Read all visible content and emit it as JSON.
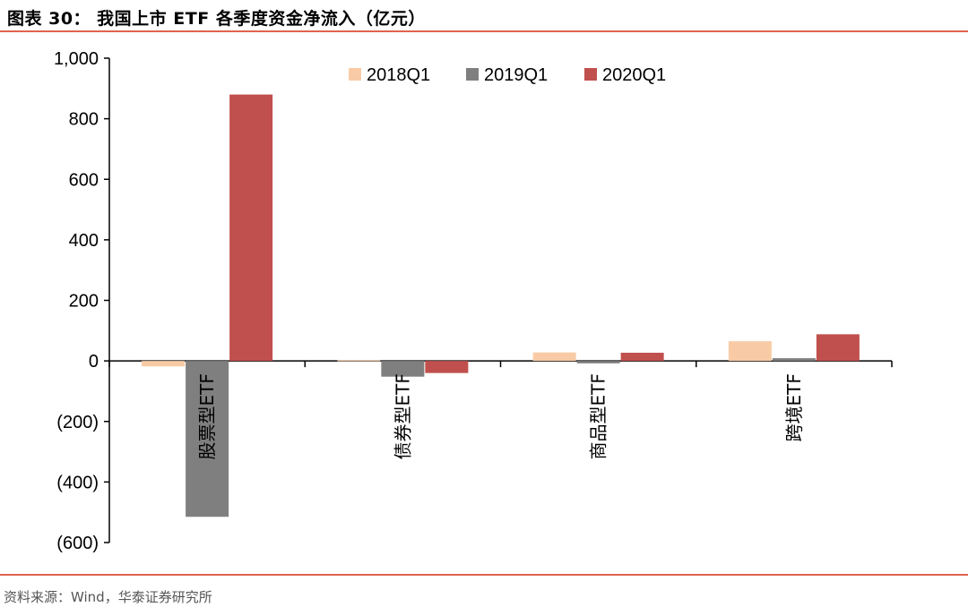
{
  "figure": {
    "title": "图表 30：  我国上市 ETF 各季度资金净流入（亿元）",
    "source": "资料来源：Wind，华泰证券研究所"
  },
  "chart_data": {
    "type": "bar",
    "categories": [
      "股票型ETF",
      "债券型ETF",
      "商品型ETF",
      "跨境ETF"
    ],
    "series": [
      {
        "name": "2018Q1",
        "color": "#f8cba6",
        "values": [
          -18,
          2,
          28,
          65
        ]
      },
      {
        "name": "2019Q1",
        "color": "#7f7f7f",
        "values": [
          -515,
          -52,
          -8,
          9
        ]
      },
      {
        "name": "2020Q1",
        "color": "#c0504d",
        "values": [
          880,
          -40,
          27,
          88
        ]
      }
    ],
    "ylim": [
      -600,
      1000
    ],
    "yticks": [
      1000,
      800,
      600,
      400,
      200,
      0,
      -200,
      -400,
      -600
    ],
    "ytick_labels": [
      "1,000",
      "800",
      "600",
      "400",
      "200",
      "0",
      "(200)",
      "(400)",
      "(600)"
    ],
    "legend_position": "top",
    "grid": false,
    "xlabel": "",
    "ylabel": ""
  }
}
